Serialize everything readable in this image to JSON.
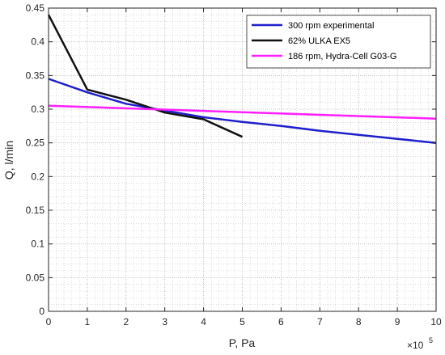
{
  "chart_data": {
    "type": "line",
    "xlabel": "P, Pa",
    "ylabel": "Q, l/min",
    "x_exponent_label": "×10",
    "x_exponent_power": "5",
    "xlim": [
      0,
      10
    ],
    "ylim": [
      0,
      0.45
    ],
    "x_scale_factor": 100000,
    "x_ticks": [
      0,
      1,
      2,
      3,
      4,
      5,
      6,
      7,
      8,
      9,
      10
    ],
    "x_tick_labels": [
      "0",
      "1",
      "2",
      "3",
      "4",
      "5",
      "6",
      "7",
      "8",
      "9",
      "10"
    ],
    "y_ticks": [
      0,
      0.05,
      0.1,
      0.15,
      0.2,
      0.25,
      0.3,
      0.35,
      0.4,
      0.45
    ],
    "y_tick_labels": [
      "0",
      "0.05",
      "0.1",
      "0.15",
      "0.2",
      "0.25",
      "0.3",
      "0.35",
      "0.4",
      "0.45"
    ],
    "grid": true,
    "minor_grid": true,
    "legend_position": "top-right",
    "series": [
      {
        "name": "300 rpm experimental",
        "color": "#1f1fcc",
        "x": [
          0,
          1,
          2,
          3,
          4,
          5,
          6,
          7,
          8,
          9,
          10
        ],
        "y": [
          0.345,
          0.325,
          0.308,
          0.298,
          0.288,
          0.281,
          0.275,
          0.268,
          0.262,
          0.256,
          0.25
        ]
      },
      {
        "name": "62% ULKA EX5",
        "color": "#111111",
        "x": [
          0,
          1,
          2,
          3,
          4,
          5
        ],
        "y": [
          0.44,
          0.329,
          0.314,
          0.295,
          0.285,
          0.259
        ]
      },
      {
        "name": "186 rpm, Hydra-Cell G03-G",
        "color": "#ff1fff",
        "x": [
          0,
          10
        ],
        "y": [
          0.305,
          0.286
        ]
      }
    ]
  }
}
